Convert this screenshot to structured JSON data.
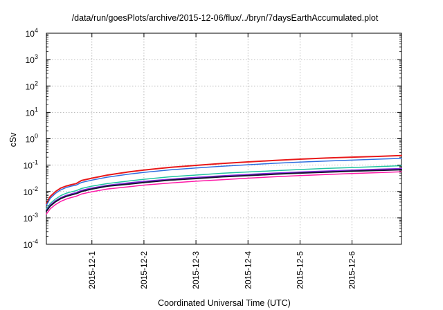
{
  "chart_data": {
    "type": "line",
    "title": "/data/run/goesPlots/archive/2015-12-06/flux/../bryn/7daysEarthAccumulated.plot",
    "xlabel": "Coordinated Universal Time (UTC)",
    "ylabel": "cSv",
    "y_scale": "log",
    "ylim_exponent": [
      -4,
      4
    ],
    "xlim_days": [
      30.125,
      36.95
    ],
    "x_ticks": [
      {
        "day": 31,
        "label": "2015-12-1"
      },
      {
        "day": 32,
        "label": "2015-12-2"
      },
      {
        "day": 33,
        "label": "2015-12-3"
      },
      {
        "day": 34,
        "label": "2015-12-4"
      },
      {
        "day": 35,
        "label": "2015-12-5"
      },
      {
        "day": 36,
        "label": "2015-12-6"
      }
    ],
    "y_ticks": [
      {
        "exp": -4,
        "base": "10",
        "sup": "-4"
      },
      {
        "exp": -3,
        "base": "10",
        "sup": "-3"
      },
      {
        "exp": -2,
        "base": "10",
        "sup": "-2"
      },
      {
        "exp": -1,
        "base": "10",
        "sup": "-1"
      },
      {
        "exp": 0,
        "base": "10",
        "sup": "0"
      },
      {
        "exp": 1,
        "base": "10",
        "sup": "1"
      },
      {
        "exp": 2,
        "base": "10",
        "sup": "2"
      },
      {
        "exp": 3,
        "base": "10",
        "sup": "3"
      },
      {
        "exp": 4,
        "base": "10",
        "sup": "4"
      }
    ],
    "grid": true,
    "x_days": [
      30.125,
      30.2,
      30.3,
      30.4,
      30.5,
      30.6,
      30.7,
      30.8,
      31.0,
      31.3,
      31.7,
      32.0,
      32.5,
      33.0,
      33.5,
      34.0,
      34.5,
      35.0,
      35.5,
      36.0,
      36.5,
      36.95
    ],
    "series": [
      {
        "color": "#e8191a",
        "width": 2.0,
        "values": [
          0.0035,
          0.0065,
          0.01,
          0.0135,
          0.016,
          0.018,
          0.02,
          0.026,
          0.032,
          0.042,
          0.055,
          0.065,
          0.082,
          0.098,
          0.115,
          0.132,
          0.15,
          0.168,
          0.185,
          0.2,
          0.215,
          0.23
        ]
      },
      {
        "color": "#2f6fe0",
        "width": 1.5,
        "values": [
          0.003,
          0.0055,
          0.0085,
          0.0115,
          0.014,
          0.016,
          0.0175,
          0.022,
          0.027,
          0.035,
          0.045,
          0.053,
          0.066,
          0.078,
          0.091,
          0.103,
          0.117,
          0.13,
          0.143,
          0.155,
          0.168,
          0.18
        ]
      },
      {
        "color": "#22c3a0",
        "width": 1.5,
        "values": [
          0.0022,
          0.0035,
          0.0052,
          0.007,
          0.0085,
          0.0097,
          0.0108,
          0.013,
          0.016,
          0.02,
          0.025,
          0.029,
          0.036,
          0.042,
          0.049,
          0.055,
          0.061,
          0.068,
          0.075,
          0.081,
          0.088,
          0.095
        ]
      },
      {
        "color": "#8a2be2",
        "width": 2.0,
        "values": [
          0.0019,
          0.003,
          0.0044,
          0.0058,
          0.007,
          0.008,
          0.009,
          0.011,
          0.0135,
          0.017,
          0.021,
          0.024,
          0.029,
          0.034,
          0.039,
          0.044,
          0.049,
          0.054,
          0.059,
          0.064,
          0.069,
          0.073
        ]
      },
      {
        "color": "#151530",
        "width": 2.0,
        "values": [
          0.0018,
          0.0028,
          0.0041,
          0.0054,
          0.0065,
          0.0074,
          0.0083,
          0.01,
          0.0125,
          0.016,
          0.019,
          0.022,
          0.027,
          0.031,
          0.036,
          0.04,
          0.045,
          0.05,
          0.054,
          0.059,
          0.063,
          0.067
        ]
      },
      {
        "color": "#ff1aa8",
        "width": 1.5,
        "values": [
          0.0014,
          0.0022,
          0.0032,
          0.0042,
          0.0051,
          0.0059,
          0.0066,
          0.008,
          0.0098,
          0.0125,
          0.015,
          0.0175,
          0.021,
          0.0245,
          0.028,
          0.032,
          0.036,
          0.04,
          0.044,
          0.048,
          0.052,
          0.056
        ]
      }
    ]
  }
}
